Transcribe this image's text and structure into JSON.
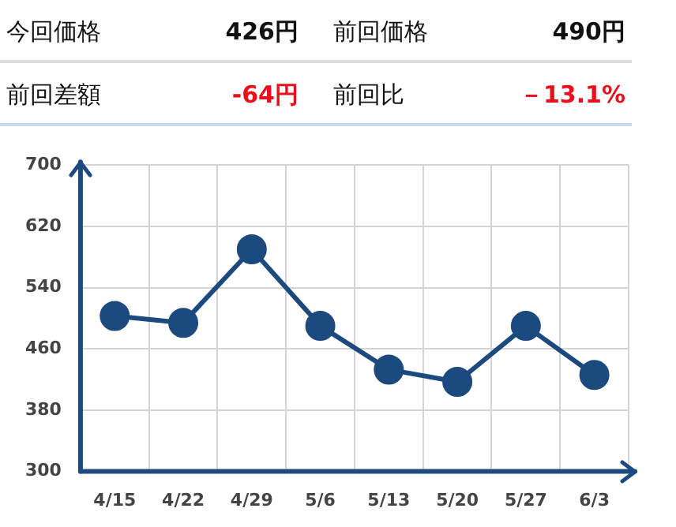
{
  "chart_data": {
    "type": "line",
    "annotations": [
      "今回価格",
      "426円",
      "前回価格",
      "490円",
      "前回差額",
      "-64円",
      "前回比",
      "－13.1%"
    ],
    "categories": [
      "4/15",
      "4/22",
      "4/29",
      "5/6",
      "5/13",
      "5/20",
      "5/27",
      "6/3"
    ],
    "series": [
      {
        "color": "#1d4a7e",
        "values": [
          503,
          494,
          590,
          490,
          433,
          417,
          490,
          426
        ]
      }
    ],
    "ylim": [
      300,
      700
    ],
    "yticks": [
      300,
      380,
      460,
      540,
      620,
      700
    ],
    "grid": true,
    "legend": false,
    "marker": "circle",
    "line_style": "solid"
  }
}
